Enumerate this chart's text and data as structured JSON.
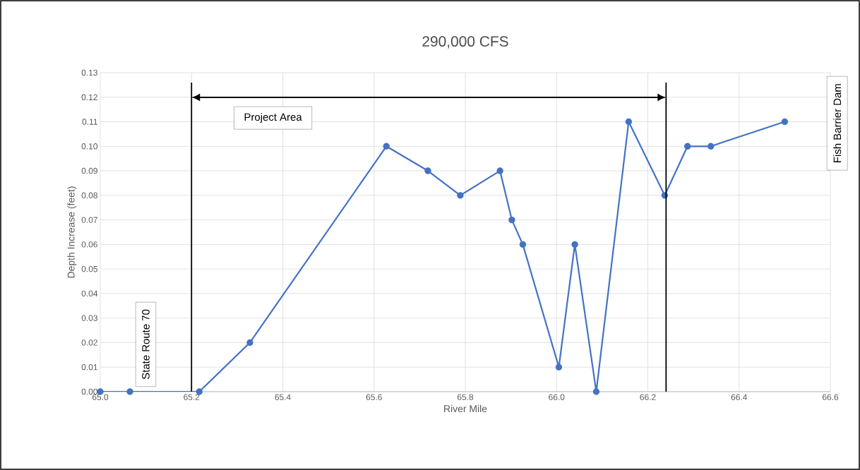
{
  "chart_data": {
    "type": "line",
    "title": "290,000 CFS",
    "xlabel": "River Mile",
    "ylabel": "Depth Increase (feet)",
    "x": [
      65.0,
      65.065,
      65.217,
      65.328,
      65.627,
      65.718,
      65.789,
      65.876,
      65.902,
      65.926,
      66.005,
      66.04,
      66.087,
      66.158,
      66.237,
      66.287,
      66.338,
      66.5
    ],
    "series": [
      {
        "color": "#4472c4",
        "values": [
          0,
          0,
          0,
          0.02,
          0.1,
          0.09,
          0.08,
          0.09,
          0.07,
          0.06,
          0.01,
          0.06,
          0,
          0.11,
          0.08,
          0.1,
          0.1,
          0.11
        ]
      }
    ],
    "marker": "circle",
    "line_style": "solid",
    "grid": true,
    "xlim": [
      65.0,
      66.6
    ],
    "xticks": [
      {
        "value": 65.0,
        "label": "65.0"
      },
      65.2,
      65.4,
      65.6,
      65.8,
      {
        "value": 66.0,
        "label": "66.0"
      },
      66.2,
      66.4,
      66.6
    ],
    "ylim": [
      0,
      0.13
    ],
    "yticks": [
      {
        "value": 0,
        "label": "0.00"
      },
      {
        "value": 0.01,
        "label": "0.01"
      },
      {
        "value": 0.02,
        "label": "0.02"
      },
      {
        "value": 0.03,
        "label": "0.03"
      },
      {
        "value": 0.04,
        "label": "0.04"
      },
      {
        "value": 0.05,
        "label": "0.05"
      },
      {
        "value": 0.06,
        "label": "0.06"
      },
      {
        "value": 0.07,
        "label": "0.07"
      },
      {
        "value": 0.08,
        "label": "0.08"
      },
      {
        "value": 0.09,
        "label": "0.09"
      },
      {
        "value": 0.1,
        "label": "0.10"
      },
      {
        "value": 0.11,
        "label": "0.11"
      },
      {
        "value": 0.12,
        "label": "0.12"
      },
      {
        "value": 0.13,
        "label": "0.13"
      }
    ],
    "ref_lines": [
      {
        "axis": "x",
        "value": 65.2,
        "color": "#000000",
        "line_style": "solid"
      },
      {
        "axis": "x",
        "value": 66.24,
        "color": "#000000",
        "line_style": "solid"
      }
    ],
    "annotations": [
      "State Route 70",
      "Fish Barrier Dam",
      "Project Area"
    ]
  }
}
